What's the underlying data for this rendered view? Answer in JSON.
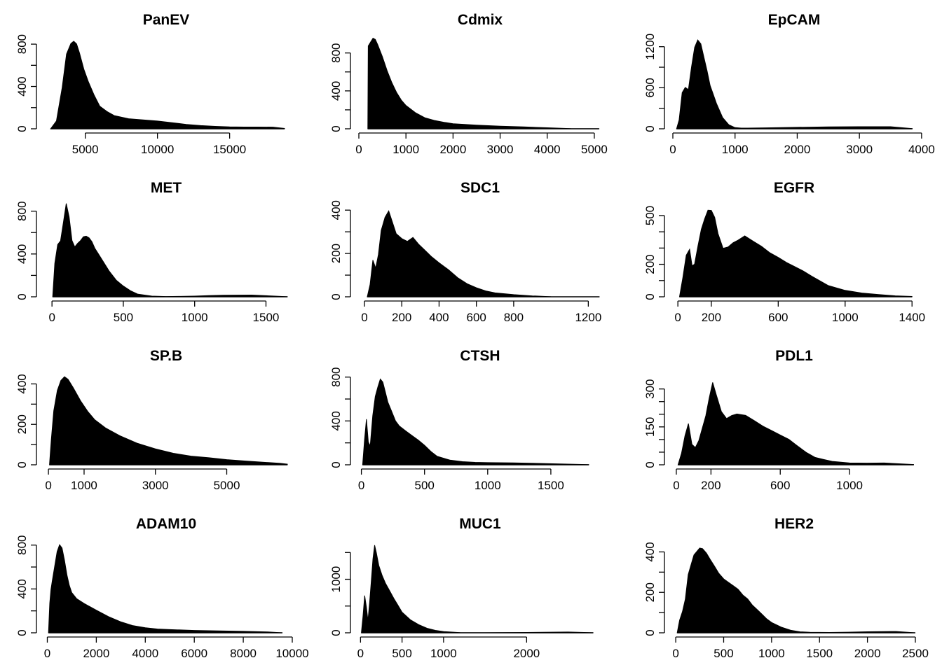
{
  "chart_data": [
    {
      "type": "histogram",
      "title": "PanEV",
      "color": "#000000",
      "xlim": [
        2200,
        19000
      ],
      "ylim": [
        0,
        860
      ],
      "xticks": [
        5000,
        10000,
        15000
      ],
      "yticks": [
        0,
        400,
        800
      ],
      "ytick_minor": [
        200,
        600
      ],
      "x": [
        2600,
        3000,
        3400,
        3700,
        4000,
        4200,
        4400,
        4600,
        4900,
        5200,
        5600,
        6000,
        6500,
        7000,
        8000,
        9000,
        10000,
        11000,
        12000,
        13000,
        14000,
        15000,
        16000,
        17000,
        18000,
        18800
      ],
      "y": [
        0,
        80,
        400,
        720,
        820,
        840,
        810,
        720,
        560,
        440,
        310,
        200,
        150,
        115,
        90,
        85,
        80,
        70,
        55,
        45,
        35,
        25,
        18,
        12,
        6,
        3
      ]
    },
    {
      "type": "histogram",
      "title": "Cdmix",
      "color": "#000000",
      "xlim": [
        0,
        5150
      ],
      "ylim": [
        0,
        960
      ],
      "xticks": [
        0,
        1000,
        2000,
        3000,
        4000,
        5000
      ],
      "yticks": [
        0,
        400,
        800
      ],
      "ytick_minor": [
        200,
        600
      ],
      "x": [
        190,
        200,
        250,
        300,
        350,
        400,
        500,
        600,
        700,
        800,
        900,
        1000,
        1200,
        1400,
        1600,
        1800,
        2000,
        2500,
        3000,
        3500,
        4000,
        4500,
        5100
      ],
      "y": [
        0,
        860,
        900,
        940,
        930,
        880,
        760,
        620,
        500,
        400,
        320,
        260,
        180,
        120,
        85,
        60,
        40,
        22,
        12,
        8,
        5,
        3,
        1
      ]
    },
    {
      "type": "histogram",
      "title": "EpCAM",
      "color": "#000000",
      "xlim": [
        0,
        3900
      ],
      "ylim": [
        0,
        1330
      ],
      "xticks": [
        0,
        1000,
        2000,
        3000,
        4000
      ],
      "yticks": [
        0,
        600,
        1200
      ],
      "ytick_minor": [
        300,
        900
      ],
      "x": [
        60,
        100,
        150,
        200,
        250,
        300,
        350,
        400,
        450,
        500,
        550,
        600,
        650,
        700,
        800,
        900,
        1000,
        1100,
        1200,
        1500,
        2000,
        2500,
        3000,
        3500,
        3850
      ],
      "y": [
        0,
        150,
        550,
        620,
        580,
        900,
        1180,
        1280,
        1220,
        1020,
        830,
        620,
        500,
        380,
        180,
        80,
        40,
        30,
        25,
        20,
        18,
        15,
        12,
        8,
        3
      ]
    },
    {
      "type": "histogram",
      "title": "MET",
      "color": "#000000",
      "xlim": [
        -50,
        1650
      ],
      "ylim": [
        0,
        850
      ],
      "xticks": [
        0,
        500,
        1000,
        1500
      ],
      "yticks": [
        0,
        400,
        800
      ],
      "ytick_minor": [
        200,
        600
      ],
      "x": [
        5,
        20,
        40,
        60,
        80,
        100,
        120,
        140,
        160,
        180,
        200,
        220,
        240,
        260,
        280,
        300,
        330,
        360,
        400,
        450,
        500,
        550,
        600,
        700,
        800,
        900,
        1000,
        1100,
        1200,
        1400,
        1650
      ],
      "y": [
        0,
        300,
        480,
        520,
        700,
        880,
        760,
        540,
        480,
        510,
        530,
        560,
        560,
        540,
        500,
        440,
        380,
        320,
        240,
        160,
        110,
        70,
        40,
        20,
        12,
        8,
        5,
        4,
        3,
        2,
        1
      ]
    },
    {
      "type": "histogram",
      "title": "SDC1",
      "color": "#000000",
      "xlim": [
        -30,
        1270
      ],
      "ylim": [
        0,
        420
      ],
      "xticks": [
        0,
        200,
        400,
        600,
        800,
        1200
      ],
      "yticks": [
        0,
        200,
        400
      ],
      "ytick_minor": [
        100,
        300
      ],
      "x": [
        15,
        30,
        45,
        60,
        75,
        90,
        110,
        130,
        150,
        170,
        200,
        230,
        260,
        290,
        320,
        360,
        400,
        450,
        500,
        550,
        600,
        650,
        700,
        800,
        900,
        1000,
        1100,
        1200,
        1260
      ],
      "y": [
        0,
        60,
        170,
        130,
        190,
        300,
        360,
        390,
        340,
        290,
        270,
        260,
        280,
        250,
        225,
        190,
        160,
        125,
        85,
        55,
        35,
        20,
        12,
        6,
        3,
        2,
        1,
        1,
        0
      ]
    },
    {
      "type": "histogram",
      "title": "EGFR",
      "color": "#000000",
      "xlim": [
        -30,
        1420
      ],
      "ylim": [
        0,
        560
      ],
      "xticks": [
        0,
        200,
        600,
        1000,
        1400
      ],
      "yticks": [
        0,
        200,
        500
      ],
      "ytick_minor": [
        100,
        300,
        400
      ],
      "x": [
        10,
        30,
        50,
        70,
        85,
        100,
        120,
        140,
        160,
        180,
        200,
        220,
        240,
        270,
        300,
        330,
        360,
        400,
        450,
        500,
        550,
        600,
        650,
        700,
        750,
        800,
        900,
        1000,
        1100,
        1200,
        1300,
        1400
      ],
      "y": [
        0,
        120,
        260,
        300,
        200,
        210,
        320,
        420,
        480,
        530,
        525,
        480,
        380,
        290,
        300,
        330,
        350,
        380,
        350,
        320,
        280,
        250,
        215,
        185,
        155,
        120,
        60,
        30,
        15,
        8,
        4,
        2
      ]
    },
    {
      "type": "histogram",
      "title": "SP.B",
      "color": "#000000",
      "xlim": [
        -100,
        6700
      ],
      "ylim": [
        0,
        450
      ],
      "xticks": [
        0,
        1000,
        3000,
        5000
      ],
      "yticks": [
        0,
        200,
        400
      ],
      "ytick_minor": [
        100,
        300
      ],
      "x": [
        30,
        80,
        150,
        250,
        350,
        450,
        550,
        700,
        900,
        1100,
        1300,
        1600,
        2000,
        2500,
        3000,
        3500,
        4000,
        4500,
        5000,
        5500,
        6000,
        6500,
        6700
      ],
      "y": [
        0,
        120,
        260,
        360,
        410,
        430,
        420,
        380,
        320,
        270,
        230,
        190,
        150,
        110,
        80,
        55,
        38,
        28,
        18,
        12,
        8,
        5,
        3
      ]
    },
    {
      "type": "histogram",
      "title": "CTSH",
      "color": "#000000",
      "xlim": [
        -20,
        1900
      ],
      "ylim": [
        0,
        830
      ],
      "xticks": [
        0,
        500,
        1000,
        1500
      ],
      "yticks": [
        0,
        400,
        800
      ],
      "ytick_minor": [
        200,
        600
      ],
      "x": [
        10,
        25,
        40,
        55,
        70,
        90,
        110,
        130,
        150,
        170,
        190,
        210,
        240,
        270,
        300,
        350,
        400,
        450,
        500,
        550,
        600,
        700,
        800,
        900,
        1000,
        1200,
        1400,
        1600,
        1800
      ],
      "y": [
        0,
        240,
        430,
        220,
        180,
        450,
        620,
        700,
        770,
        740,
        650,
        560,
        480,
        400,
        360,
        320,
        280,
        240,
        190,
        130,
        80,
        40,
        20,
        10,
        6,
        4,
        3,
        2,
        1
      ]
    },
    {
      "type": "histogram",
      "title": "PDL1",
      "color": "#000000",
      "xlim": [
        -20,
        1380
      ],
      "ylim": [
        0,
        360
      ],
      "xticks": [
        0,
        200,
        600,
        1000
      ],
      "yticks": [
        0,
        150,
        300
      ],
      "ytick_minor": [
        50,
        100,
        200,
        250
      ],
      "x": [
        10,
        30,
        50,
        70,
        90,
        110,
        130,
        150,
        170,
        190,
        210,
        230,
        260,
        290,
        320,
        350,
        400,
        450,
        500,
        550,
        600,
        650,
        700,
        750,
        800,
        850,
        900,
        1000,
        1100,
        1200,
        1370
      ],
      "y": [
        0,
        40,
        110,
        160,
        80,
        70,
        100,
        150,
        200,
        270,
        330,
        280,
        210,
        180,
        190,
        195,
        190,
        170,
        150,
        135,
        120,
        105,
        80,
        55,
        35,
        25,
        15,
        6,
        3,
        2,
        1
      ]
    },
    {
      "type": "histogram",
      "title": "ADAM10",
      "color": "#000000",
      "xlim": [
        -100,
        9800
      ],
      "ylim": [
        0,
        830
      ],
      "xticks": [
        0,
        2000,
        4000,
        6000,
        8000,
        10000
      ],
      "yticks": [
        0,
        400,
        800
      ],
      "ytick_minor": [
        200,
        600
      ],
      "x": [
        50,
        100,
        150,
        200,
        300,
        400,
        500,
        600,
        700,
        800,
        900,
        1000,
        1200,
        1500,
        2000,
        2500,
        3000,
        3500,
        4000,
        4500,
        5000,
        6000,
        7000,
        8000,
        9000,
        9600
      ],
      "y": [
        0,
        280,
        400,
        470,
        600,
        730,
        790,
        760,
        650,
        520,
        430,
        370,
        320,
        280,
        220,
        160,
        110,
        70,
        45,
        28,
        18,
        8,
        4,
        2,
        1,
        0
      ]
    },
    {
      "type": "histogram",
      "title": "MUC1",
      "color": "#000000",
      "xlim": [
        -20,
        2900
      ],
      "ylim": [
        0,
        1700
      ],
      "xticks": [
        0,
        500,
        1000,
        2000
      ],
      "yticks": [
        0,
        1000
      ],
      "ytick_minor": [
        500,
        1500
      ],
      "x": [
        10,
        30,
        50,
        70,
        90,
        110,
        130,
        150,
        170,
        190,
        220,
        260,
        300,
        350,
        400,
        450,
        500,
        600,
        700,
        800,
        900,
        1000,
        1200,
        1500,
        2000,
        2500,
        2800
      ],
      "y": [
        0,
        300,
        700,
        500,
        250,
        600,
        1000,
        1400,
        1650,
        1500,
        1250,
        1050,
        900,
        760,
        620,
        500,
        380,
        250,
        170,
        110,
        75,
        50,
        25,
        12,
        5,
        2,
        1
      ]
    },
    {
      "type": "histogram",
      "title": "HER2",
      "color": "#000000",
      "xlim": [
        -30,
        2500
      ],
      "ylim": [
        0,
        450
      ],
      "xticks": [
        0,
        500,
        1000,
        1500,
        2000,
        2500
      ],
      "yticks": [
        0,
        200,
        400
      ],
      "ytick_minor": [
        100,
        300
      ],
      "x": [
        15,
        40,
        70,
        100,
        130,
        160,
        190,
        220,
        250,
        280,
        320,
        360,
        400,
        450,
        500,
        550,
        600,
        650,
        700,
        750,
        800,
        850,
        900,
        950,
        1000,
        1100,
        1200,
        1300,
        1400,
        1600,
        1800,
        2000,
        2300,
        2500
      ],
      "y": [
        0,
        60,
        100,
        160,
        280,
        330,
        380,
        400,
        420,
        420,
        400,
        370,
        340,
        300,
        270,
        250,
        230,
        210,
        180,
        160,
        130,
        110,
        90,
        70,
        55,
        35,
        20,
        12,
        8,
        5,
        3,
        2,
        1,
        0
      ]
    }
  ]
}
